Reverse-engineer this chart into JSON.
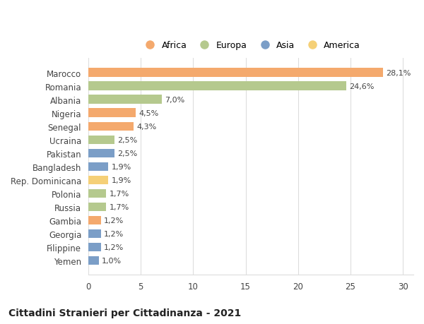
{
  "countries": [
    "Marocco",
    "Romania",
    "Albania",
    "Nigeria",
    "Senegal",
    "Ucraina",
    "Pakistan",
    "Bangladesh",
    "Rep. Dominicana",
    "Polonia",
    "Russia",
    "Gambia",
    "Georgia",
    "Filippine",
    "Yemen"
  ],
  "values": [
    28.1,
    24.6,
    7.0,
    4.5,
    4.3,
    2.5,
    2.5,
    1.9,
    1.9,
    1.7,
    1.7,
    1.2,
    1.2,
    1.2,
    1.0
  ],
  "labels": [
    "28,1%",
    "24,6%",
    "7,0%",
    "4,5%",
    "4,3%",
    "2,5%",
    "2,5%",
    "1,9%",
    "1,9%",
    "1,7%",
    "1,7%",
    "1,2%",
    "1,2%",
    "1,2%",
    "1,0%"
  ],
  "colors": [
    "#F4A96D",
    "#B5C98E",
    "#B5C98E",
    "#F4A96D",
    "#F4A96D",
    "#B5C98E",
    "#7B9EC7",
    "#7B9EC7",
    "#F5D077",
    "#B5C98E",
    "#B5C98E",
    "#F4A96D",
    "#7B9EC7",
    "#7B9EC7",
    "#7B9EC7"
  ],
  "continents": [
    "Africa",
    "Europa",
    "Asia",
    "America"
  ],
  "legend_colors": [
    "#F4A96D",
    "#B5C98E",
    "#7B9EC7",
    "#F5D077"
  ],
  "title": "Cittadini Stranieri per Cittadinanza - 2021",
  "xlim": [
    0,
    31
  ],
  "xticks": [
    0,
    5,
    10,
    15,
    20,
    25,
    30
  ],
  "background_color": "#ffffff",
  "grid_color": "#dddddd"
}
